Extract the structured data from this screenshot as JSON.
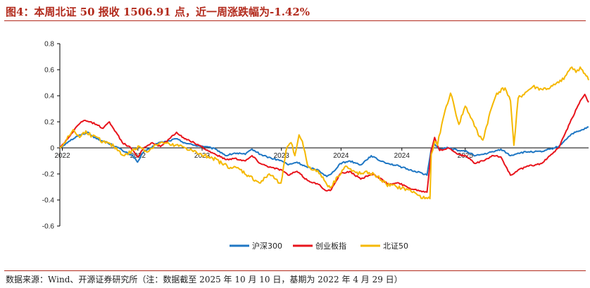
{
  "title": "图4：本周北证 50 报收 1506.91 点，近一周涨跌幅为-1.42%",
  "source": "数据来源：Wind、开源证券研究所（注：数据截至 2025 年 10 月 10 日，基期为 2022 年 4 月 29 日）",
  "chart_data": {
    "type": "line",
    "title": "图4：本周北证 50 报收 1506.91 点，近一周涨跌幅为-1.42%",
    "xlabel": "",
    "ylabel": "",
    "ylim": [
      -0.6,
      0.8
    ],
    "y_ticks": [
      "0.8",
      "0.6",
      "0.4",
      "0.2",
      "0",
      "-0.2",
      "-0.4",
      "-0.6"
    ],
    "x_tick_labels": [
      "2022",
      "2022",
      "2023",
      "2023",
      "2024",
      "2024",
      "2025"
    ],
    "x_tick_dates": [
      "2022-05-05",
      "2022-11-01",
      "2023-04-03",
      "2023-10-09",
      "2024-02-28",
      "2024-07-22",
      "2024-12-20"
    ],
    "x_range": [
      "2022-04-29",
      "2025-10-10"
    ],
    "grid": false,
    "legend_position": "bottom-center",
    "series": [
      {
        "name": "沪深300",
        "color": "#1f77c4",
        "points": [
          [
            "2022-04-29",
            0
          ],
          [
            "2022-05-20",
            0.05
          ],
          [
            "2022-06-10",
            0.09
          ],
          [
            "2022-07-05",
            0.12
          ],
          [
            "2022-07-25",
            0.07
          ],
          [
            "2022-08-20",
            0.04
          ],
          [
            "2022-09-10",
            0.01
          ],
          [
            "2022-09-30",
            -0.03
          ],
          [
            "2022-10-20",
            -0.06
          ],
          [
            "2022-10-31",
            -0.11
          ],
          [
            "2022-11-15",
            -0.03
          ],
          [
            "2022-12-01",
            0.0
          ],
          [
            "2022-12-20",
            0.04
          ],
          [
            "2023-01-10",
            0.05
          ],
          [
            "2023-01-31",
            0.07
          ],
          [
            "2023-02-20",
            0.04
          ],
          [
            "2023-03-15",
            0.02
          ],
          [
            "2023-04-10",
            0.01
          ],
          [
            "2023-05-05",
            -0.01
          ],
          [
            "2023-05-31",
            -0.06
          ],
          [
            "2023-06-20",
            -0.04
          ],
          [
            "2023-07-15",
            -0.05
          ],
          [
            "2023-07-31",
            -0.01
          ],
          [
            "2023-08-20",
            -0.05
          ],
          [
            "2023-09-15",
            -0.08
          ],
          [
            "2023-10-10",
            -0.1
          ],
          [
            "2023-10-25",
            -0.13
          ],
          [
            "2023-11-15",
            -0.11
          ],
          [
            "2023-12-10",
            -0.15
          ],
          [
            "2024-01-05",
            -0.17
          ],
          [
            "2024-01-25",
            -0.22
          ],
          [
            "2024-02-05",
            -0.2
          ],
          [
            "2024-02-26",
            -0.12
          ],
          [
            "2024-03-20",
            -0.1
          ],
          [
            "2024-04-15",
            -0.13
          ],
          [
            "2024-05-10",
            -0.06
          ],
          [
            "2024-05-25",
            -0.09
          ],
          [
            "2024-06-20",
            -0.12
          ],
          [
            "2024-07-15",
            -0.14
          ],
          [
            "2024-08-10",
            -0.17
          ],
          [
            "2024-09-05",
            -0.19
          ],
          [
            "2024-09-20",
            -0.21
          ],
          [
            "2024-09-30",
            -0.01
          ],
          [
            "2024-10-08",
            0.03
          ],
          [
            "2024-10-20",
            -0.01
          ],
          [
            "2024-11-10",
            0.0
          ],
          [
            "2024-12-05",
            -0.02
          ],
          [
            "2024-12-25",
            -0.03
          ],
          [
            "2025-01-13",
            -0.06
          ],
          [
            "2025-01-31",
            -0.05
          ],
          [
            "2025-02-25",
            -0.03
          ],
          [
            "2025-03-15",
            -0.01
          ],
          [
            "2025-04-07",
            -0.06
          ],
          [
            "2025-04-25",
            -0.04
          ],
          [
            "2025-05-20",
            -0.03
          ],
          [
            "2025-06-20",
            -0.03
          ],
          [
            "2025-07-10",
            -0.01
          ],
          [
            "2025-07-31",
            0.01
          ],
          [
            "2025-08-15",
            0.06
          ],
          [
            "2025-09-01",
            0.11
          ],
          [
            "2025-09-20",
            0.13
          ],
          [
            "2025-10-10",
            0.16
          ]
        ]
      },
      {
        "name": "创业板指",
        "color": "#e8141c",
        "points": [
          [
            "2022-04-29",
            0
          ],
          [
            "2022-05-20",
            0.08
          ],
          [
            "2022-06-10",
            0.17
          ],
          [
            "2022-06-25",
            0.21
          ],
          [
            "2022-07-10",
            0.2
          ],
          [
            "2022-07-25",
            0.18
          ],
          [
            "2022-08-10",
            0.15
          ],
          [
            "2022-08-25",
            0.2
          ],
          [
            "2022-09-10",
            0.12
          ],
          [
            "2022-09-25",
            0.04
          ],
          [
            "2022-10-15",
            0.0
          ],
          [
            "2022-10-31",
            -0.07
          ],
          [
            "2022-11-15",
            0.0
          ],
          [
            "2022-12-05",
            0.04
          ],
          [
            "2022-12-25",
            0.01
          ],
          [
            "2023-01-15",
            0.07
          ],
          [
            "2023-02-01",
            0.12
          ],
          [
            "2023-02-20",
            0.07
          ],
          [
            "2023-03-15",
            0.04
          ],
          [
            "2023-04-10",
            -0.01
          ],
          [
            "2023-05-05",
            -0.05
          ],
          [
            "2023-05-31",
            -0.09
          ],
          [
            "2023-06-20",
            -0.08
          ],
          [
            "2023-07-15",
            -0.1
          ],
          [
            "2023-07-31",
            -0.06
          ],
          [
            "2023-08-20",
            -0.12
          ],
          [
            "2023-09-15",
            -0.15
          ],
          [
            "2023-10-10",
            -0.17
          ],
          [
            "2023-10-25",
            -0.21
          ],
          [
            "2023-11-15",
            -0.18
          ],
          [
            "2023-12-10",
            -0.25
          ],
          [
            "2024-01-05",
            -0.28
          ],
          [
            "2024-01-25",
            -0.33
          ],
          [
            "2024-02-05",
            -0.32
          ],
          [
            "2024-02-26",
            -0.2
          ],
          [
            "2024-03-20",
            -0.18
          ],
          [
            "2024-04-15",
            -0.24
          ],
          [
            "2024-05-10",
            -0.2
          ],
          [
            "2024-05-25",
            -0.22
          ],
          [
            "2024-06-20",
            -0.28
          ],
          [
            "2024-07-15",
            -0.27
          ],
          [
            "2024-08-10",
            -0.31
          ],
          [
            "2024-09-05",
            -0.33
          ],
          [
            "2024-09-20",
            -0.34
          ],
          [
            "2024-09-30",
            -0.02
          ],
          [
            "2024-10-08",
            0.08
          ],
          [
            "2024-10-20",
            -0.02
          ],
          [
            "2024-11-10",
            0.0
          ],
          [
            "2024-12-05",
            -0.05
          ],
          [
            "2024-12-25",
            -0.07
          ],
          [
            "2025-01-13",
            -0.12
          ],
          [
            "2025-01-31",
            -0.1
          ],
          [
            "2025-02-25",
            -0.06
          ],
          [
            "2025-03-15",
            -0.07
          ],
          [
            "2025-04-07",
            -0.21
          ],
          [
            "2025-04-25",
            -0.17
          ],
          [
            "2025-05-20",
            -0.14
          ],
          [
            "2025-06-20",
            -0.12
          ],
          [
            "2025-07-10",
            -0.06
          ],
          [
            "2025-07-31",
            0.0
          ],
          [
            "2025-08-15",
            0.11
          ],
          [
            "2025-09-01",
            0.23
          ],
          [
            "2025-09-20",
            0.36
          ],
          [
            "2025-10-01",
            0.41
          ],
          [
            "2025-10-10",
            0.35
          ]
        ]
      },
      {
        "name": "北证50",
        "color": "#f5b800",
        "points": [
          [
            "2022-04-29",
            0
          ],
          [
            "2022-05-15",
            0.06
          ],
          [
            "2022-05-31",
            0.14
          ],
          [
            "2022-06-15",
            0.08
          ],
          [
            "2022-06-30",
            0.13
          ],
          [
            "2022-07-15",
            0.09
          ],
          [
            "2022-08-10",
            0.05
          ],
          [
            "2022-09-05",
            0.01
          ],
          [
            "2022-09-30",
            -0.06
          ],
          [
            "2022-10-20",
            -0.02
          ],
          [
            "2022-11-05",
            0.01
          ],
          [
            "2022-11-25",
            -0.03
          ],
          [
            "2022-12-10",
            0.02
          ],
          [
            "2022-12-31",
            0.04
          ],
          [
            "2023-01-20",
            0.02
          ],
          [
            "2023-02-15",
            0.01
          ],
          [
            "2023-03-10",
            -0.02
          ],
          [
            "2023-04-03",
            -0.06
          ],
          [
            "2023-04-25",
            -0.07
          ],
          [
            "2023-05-20",
            -0.12
          ],
          [
            "2023-06-10",
            -0.15
          ],
          [
            "2023-06-30",
            -0.16
          ],
          [
            "2023-07-25",
            -0.22
          ],
          [
            "2023-08-20",
            -0.27
          ],
          [
            "2023-09-10",
            -0.2
          ],
          [
            "2023-09-25",
            -0.24
          ],
          [
            "2023-10-08",
            -0.27
          ],
          [
            "2023-10-20",
            -0.02
          ],
          [
            "2023-11-01",
            0.04
          ],
          [
            "2023-11-10",
            -0.06
          ],
          [
            "2023-11-20",
            0.1
          ],
          [
            "2023-11-28",
            0.05
          ],
          [
            "2023-12-10",
            -0.13
          ],
          [
            "2023-12-25",
            -0.17
          ],
          [
            "2024-01-10",
            -0.2
          ],
          [
            "2024-01-25",
            -0.28
          ],
          [
            "2024-02-05",
            -0.3
          ],
          [
            "2024-02-20",
            -0.22
          ],
          [
            "2024-03-10",
            -0.14
          ],
          [
            "2024-03-25",
            -0.18
          ],
          [
            "2024-04-15",
            -0.2
          ],
          [
            "2024-05-05",
            -0.19
          ],
          [
            "2024-05-25",
            -0.22
          ],
          [
            "2024-06-15",
            -0.28
          ],
          [
            "2024-07-10",
            -0.3
          ],
          [
            "2024-08-05",
            -0.32
          ],
          [
            "2024-08-25",
            -0.35
          ],
          [
            "2024-09-15",
            -0.39
          ],
          [
            "2024-09-27",
            -0.39
          ],
          [
            "2024-09-30",
            -0.05
          ],
          [
            "2024-10-08",
            0.05
          ],
          [
            "2024-10-15",
            0.02
          ],
          [
            "2024-10-25",
            0.18
          ],
          [
            "2024-11-05",
            0.32
          ],
          [
            "2024-11-15",
            0.42
          ],
          [
            "2024-11-25",
            0.3
          ],
          [
            "2024-12-05",
            0.18
          ],
          [
            "2024-12-20",
            0.32
          ],
          [
            "2025-01-05",
            0.22
          ],
          [
            "2025-01-20",
            0.1
          ],
          [
            "2025-01-31",
            0.06
          ],
          [
            "2025-02-20",
            0.3
          ],
          [
            "2025-03-05",
            0.42
          ],
          [
            "2025-03-25",
            0.46
          ],
          [
            "2025-04-07",
            0.36
          ],
          [
            "2025-04-15",
            0.02
          ],
          [
            "2025-04-25",
            0.38
          ],
          [
            "2025-05-15",
            0.43
          ],
          [
            "2025-05-30",
            0.47
          ],
          [
            "2025-06-20",
            0.45
          ],
          [
            "2025-07-10",
            0.46
          ],
          [
            "2025-07-31",
            0.5
          ],
          [
            "2025-08-15",
            0.55
          ],
          [
            "2025-08-31",
            0.62
          ],
          [
            "2025-09-10",
            0.58
          ],
          [
            "2025-09-20",
            0.62
          ],
          [
            "2025-10-01",
            0.57
          ],
          [
            "2025-10-10",
            0.52
          ]
        ]
      }
    ]
  }
}
